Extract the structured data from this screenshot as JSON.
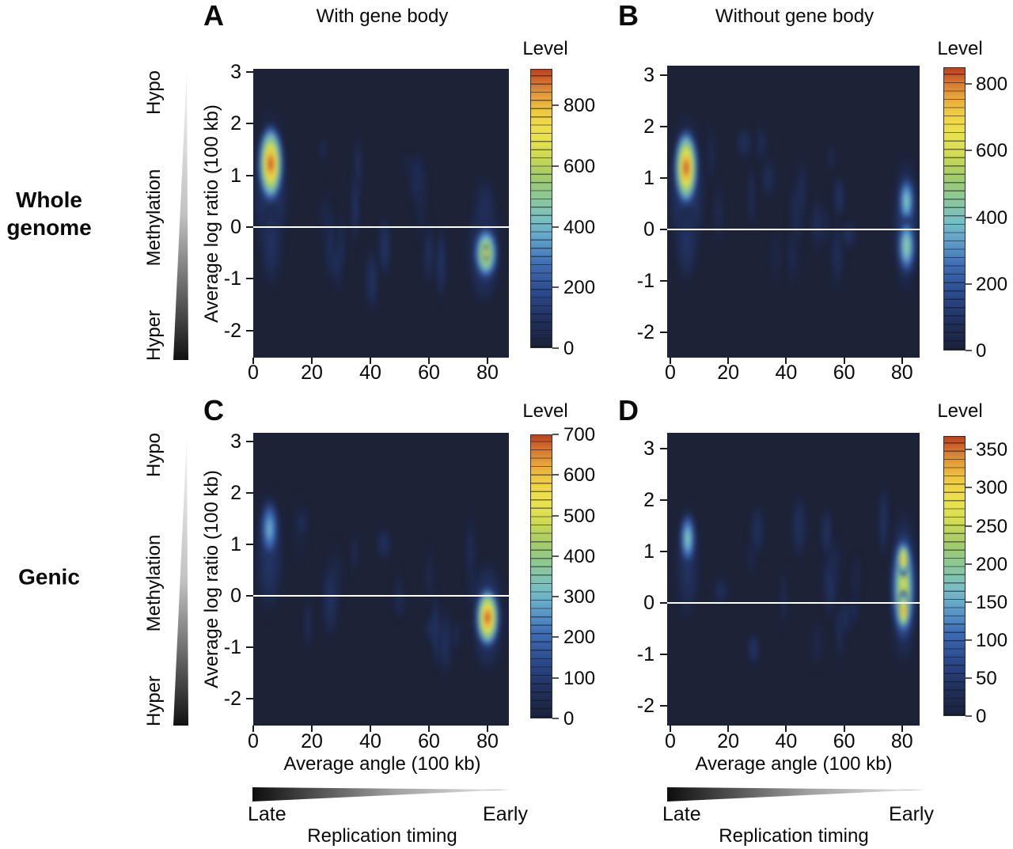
{
  "labels": {
    "col1_title": "With gene body",
    "col2_title": "Without gene body",
    "row1_label": "Whole\ngenome",
    "row2_label": "Genic",
    "y_axis": "Average log ratio (100 kb)",
    "x_axis": "Average angle (100 kb)",
    "level": "Level",
    "hypo": "Hypo",
    "methylation": "Methylation",
    "hyper": "Hyper",
    "late": "Late",
    "early": "Early",
    "replication": "Replication timing"
  },
  "colors": {
    "plot_background": "#1d2237",
    "zero_line": "#ffffff",
    "colormap_low": "#1a2139",
    "colormap_mid": "#8cc795",
    "colormap_high": "#b8431f"
  },
  "chart_data": [
    {
      "id": "A",
      "type": "heatmap",
      "condition": "With gene body",
      "region": "Whole genome",
      "xlabel": "Average angle (100 kb)",
      "ylabel": "Average log ratio (100 kb)",
      "x_ticks": [
        0,
        20,
        40,
        60,
        80
      ],
      "y_ticks": [
        3,
        2,
        1,
        0,
        -1,
        -2
      ],
      "zero_line_y": 0,
      "colorbar": {
        "title": "Level",
        "ticks": [
          0,
          200,
          400,
          600,
          800
        ],
        "max": 920
      },
      "hotspots": [
        {
          "x": 6,
          "y": 0.8,
          "rx": 7,
          "ry": 1.6,
          "level": 140
        },
        {
          "x": 6,
          "y": -0.3,
          "rx": 4.5,
          "ry": 1.0,
          "level": 100
        },
        {
          "x": 79,
          "y": -0.45,
          "rx": 6.5,
          "ry": 1.15,
          "level": 150
        },
        {
          "x": 79,
          "y": 0.35,
          "rx": 4.5,
          "ry": 0.8,
          "level": 85
        },
        {
          "x": 6,
          "y": 1.22,
          "rx": 4.6,
          "ry": 0.8,
          "level": 920
        },
        {
          "x": 79.5,
          "y": -0.5,
          "rx": 4.3,
          "ry": 0.55,
          "level": 680
        },
        {
          "x": 79.5,
          "y": -0.5,
          "rx": 1.4,
          "ry": 0.16,
          "level": 800
        }
      ]
    },
    {
      "id": "B",
      "type": "heatmap",
      "condition": "Without gene body",
      "region": "Whole genome",
      "xlabel": "Average angle (100 kb)",
      "ylabel": "Average log ratio (100 kb)",
      "x_ticks": [
        0,
        20,
        40,
        60,
        80
      ],
      "y_ticks": [
        3,
        2,
        1,
        0,
        -1,
        -2
      ],
      "zero_line_y": 0,
      "colorbar": {
        "title": "Level",
        "ticks": [
          0,
          200,
          400,
          600,
          800
        ],
        "max": 850
      },
      "hotspots": [
        {
          "x": 5.5,
          "y": 0.8,
          "rx": 7,
          "ry": 1.6,
          "level": 140
        },
        {
          "x": 5.5,
          "y": -0.25,
          "rx": 4.5,
          "ry": 0.95,
          "level": 95
        },
        {
          "x": 81.5,
          "y": 0.1,
          "rx": 5.5,
          "ry": 1.5,
          "level": 130
        },
        {
          "x": 5.5,
          "y": 1.2,
          "rx": 4.3,
          "ry": 0.78,
          "level": 850
        },
        {
          "x": 81.5,
          "y": 0.55,
          "rx": 3.2,
          "ry": 0.55,
          "level": 420
        },
        {
          "x": 81.5,
          "y": -0.33,
          "rx": 3.5,
          "ry": 0.6,
          "level": 465
        }
      ]
    },
    {
      "id": "C",
      "type": "heatmap",
      "condition": "With gene body",
      "region": "Genic",
      "xlabel": "Average angle (100 kb)",
      "ylabel": "Average log ratio (100 kb)",
      "x_ticks": [
        0,
        20,
        40,
        60,
        80
      ],
      "y_ticks": [
        3,
        2,
        1,
        0,
        -1,
        -2
      ],
      "zero_line_y": 0,
      "colorbar": {
        "title": "Level",
        "ticks": [
          0,
          100,
          200,
          300,
          400,
          500,
          600,
          700
        ],
        "max": 700
      },
      "hotspots": [
        {
          "x": 5.5,
          "y": 0.85,
          "rx": 5.5,
          "ry": 1.35,
          "level": 90
        },
        {
          "x": 80,
          "y": -0.4,
          "rx": 6.5,
          "ry": 1.2,
          "level": 115
        },
        {
          "x": 5.5,
          "y": 1.3,
          "rx": 3.4,
          "ry": 0.62,
          "level": 300
        },
        {
          "x": 80,
          "y": -0.42,
          "rx": 4.4,
          "ry": 0.62,
          "level": 700
        }
      ]
    },
    {
      "id": "D",
      "type": "heatmap",
      "condition": "Without gene body",
      "region": "Genic",
      "xlabel": "Average angle (100 kb)",
      "ylabel": "Average log ratio (100 kb)",
      "x_ticks": [
        0,
        20,
        40,
        60,
        80
      ],
      "y_ticks": [
        3,
        2,
        1,
        0,
        -1,
        -2
      ],
      "zero_line_y": 0,
      "colorbar": {
        "title": "Level",
        "ticks": [
          0,
          50,
          100,
          150,
          200,
          250,
          300,
          350
        ],
        "max": 368
      },
      "hotspots": [
        {
          "x": 6,
          "y": 0.8,
          "rx": 5,
          "ry": 1.3,
          "level": 42
        },
        {
          "x": 80.5,
          "y": 0.3,
          "rx": 6,
          "ry": 1.7,
          "level": 58
        },
        {
          "x": 6,
          "y": 1.25,
          "rx": 3,
          "ry": 0.55,
          "level": 185
        },
        {
          "x": 80.5,
          "y": 0.3,
          "rx": 4.3,
          "ry": 1.1,
          "level": 268
        },
        {
          "x": 80.5,
          "y": 0.85,
          "rx": 2.3,
          "ry": 0.36,
          "level": 330
        },
        {
          "x": 80.5,
          "y": -0.15,
          "rx": 2.3,
          "ry": 0.42,
          "level": 345
        }
      ]
    }
  ]
}
